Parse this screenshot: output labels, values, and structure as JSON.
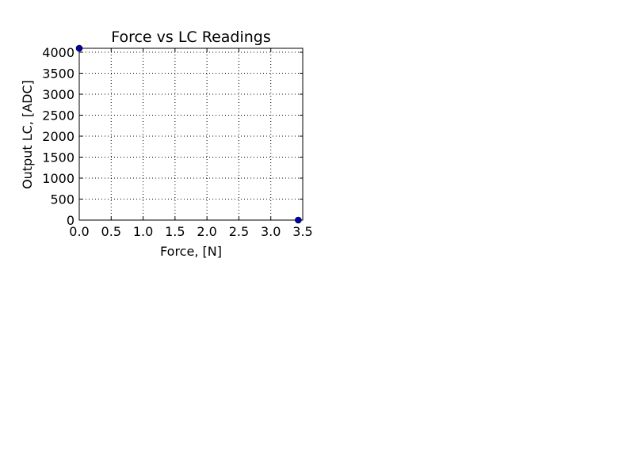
{
  "chart_data": {
    "type": "scatter",
    "title": "Force vs LC Readings",
    "xlabel": "Force, [N]",
    "ylabel": "Output LC, [ADC]",
    "xlim": [
      0.0,
      3.5
    ],
    "ylim": [
      0,
      4095
    ],
    "x_ticks": [
      "0.0",
      "0.5",
      "1.0",
      "1.5",
      "2.0",
      "2.5",
      "3.0",
      "3.5"
    ],
    "y_ticks": [
      "0",
      "500",
      "1000",
      "1500",
      "2000",
      "2500",
      "3000",
      "3500",
      "4000"
    ],
    "grid": true,
    "points": [
      {
        "x": 0.0,
        "y": 4095
      },
      {
        "x": 3.43,
        "y": 0
      }
    ],
    "marker_color": "#0000a8"
  }
}
